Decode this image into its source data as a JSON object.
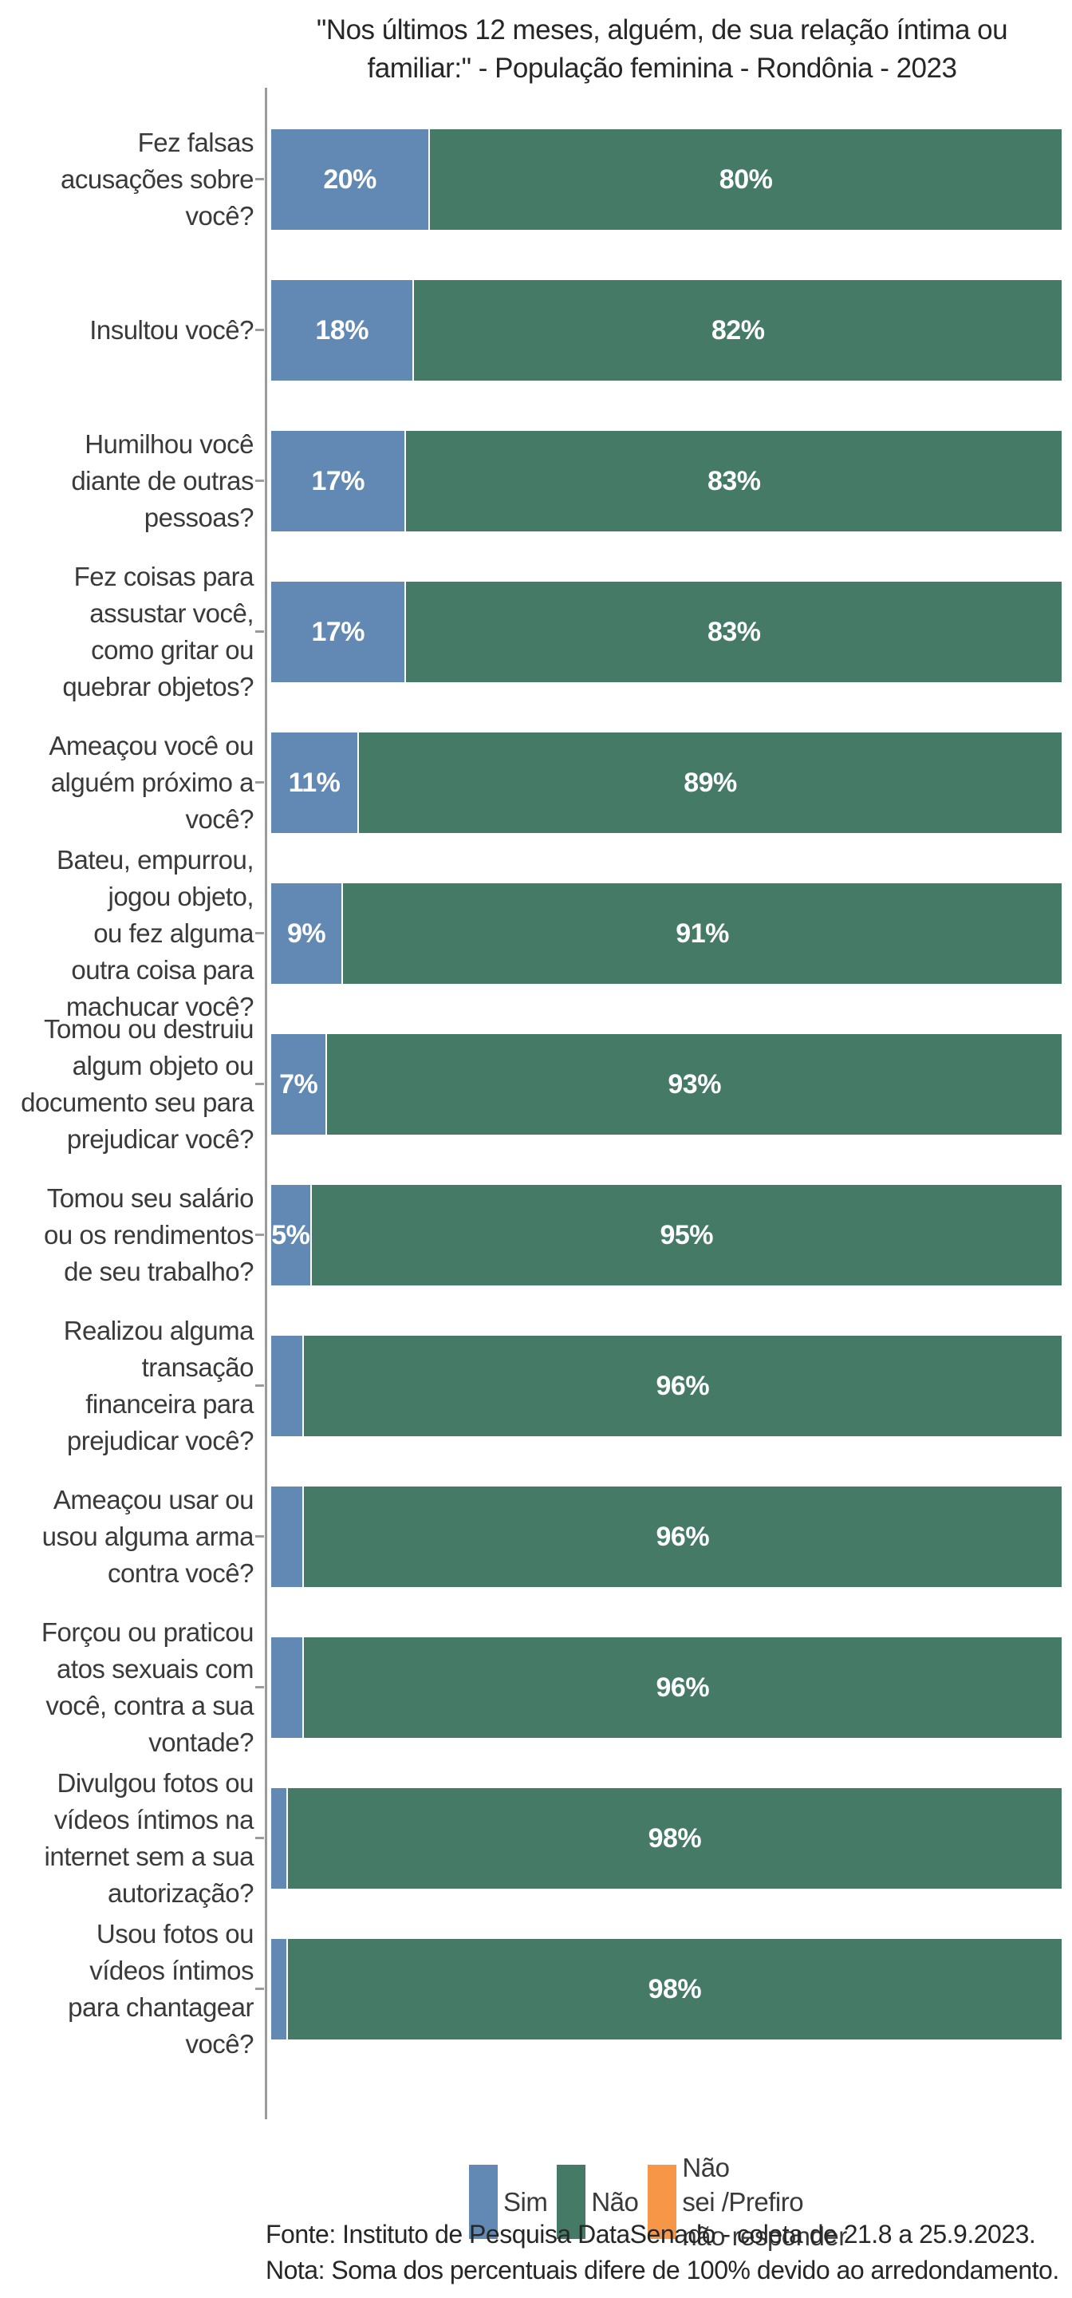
{
  "title": {
    "lines": [
      "\"Nos últimos 12 meses, alguém, de sua relação íntima ou",
      "familiar:\" - População feminina - Rondônia - 2023"
    ]
  },
  "chart_data": {
    "type": "bar",
    "orientation": "horizontal",
    "stacked": true,
    "unit": "%",
    "x_range": [
      0,
      100
    ],
    "grid": false,
    "legend_position": "bottom",
    "categories": [
      "Fez falsas acusações sobre você?",
      "Insultou você?",
      "Humilhou você diante de outras pessoas?",
      "Fez coisas para assustar você, como gritar ou quebrar objetos?",
      "Ameaçou você ou alguém próximo a você?",
      "Bateu, empurrou, jogou objeto, ou fez alguma outra coisa para machucar você?",
      "Tomou ou destruiu algum objeto ou documento seu para prejudicar você?",
      "Tomou seu salário ou os rendimentos de seu trabalho?",
      "Realizou alguma transação financeira para prejudicar você?",
      "Ameaçou usar ou usou alguma arma contra você?",
      "Forçou ou praticou atos sexuais com você, contra a sua vontade?",
      "Divulgou fotos ou vídeos íntimos na internet sem a sua autorização?",
      "Usou fotos ou vídeos íntimos para chantagear você?"
    ],
    "series": [
      {
        "name": "Sim",
        "color": "#6289b4",
        "values": [
          20,
          18,
          17,
          17,
          11,
          9,
          7,
          5,
          4,
          4,
          4,
          2,
          2
        ]
      },
      {
        "name": "Não",
        "color": "#447a66",
        "values": [
          80,
          82,
          83,
          83,
          89,
          91,
          93,
          95,
          96,
          96,
          96,
          98,
          98
        ]
      },
      {
        "name": "Não sei /Prefiro não responder",
        "color": "#f79646",
        "values": [
          0,
          0,
          0,
          0,
          0,
          0,
          0,
          0,
          0,
          0,
          0,
          0,
          0
        ]
      }
    ],
    "rows": [
      {
        "question_lines": [
          "Fez falsas",
          "acusações sobre",
          "você?"
        ],
        "values": {
          "sim": 20,
          "nao": 80
        },
        "labels": {
          "sim": "20%",
          "nao": "80%"
        }
      },
      {
        "question_lines": [
          "Insultou você?"
        ],
        "values": {
          "sim": 18,
          "nao": 82
        },
        "labels": {
          "sim": "18%",
          "nao": "82%"
        }
      },
      {
        "question_lines": [
          "Humilhou você",
          "diante de outras",
          "pessoas?"
        ],
        "values": {
          "sim": 17,
          "nao": 83
        },
        "labels": {
          "sim": "17%",
          "nao": "83%"
        }
      },
      {
        "question_lines": [
          "Fez coisas para",
          "assustar você,",
          "como gritar ou",
          "quebrar objetos?"
        ],
        "values": {
          "sim": 17,
          "nao": 83
        },
        "labels": {
          "sim": "17%",
          "nao": "83%"
        }
      },
      {
        "question_lines": [
          "Ameaçou você ou",
          "alguém próximo a",
          "você?"
        ],
        "values": {
          "sim": 11,
          "nao": 89
        },
        "labels": {
          "sim": "11%",
          "nao": "89%"
        }
      },
      {
        "question_lines": [
          "Bateu, empurrou,",
          "jogou objeto,",
          "ou fez alguma",
          "outra coisa para",
          "machucar você?"
        ],
        "values": {
          "sim": 9,
          "nao": 91
        },
        "labels": {
          "sim": "9%",
          "nao": "91%"
        }
      },
      {
        "question_lines": [
          "Tomou ou destruiu",
          "algum objeto ou",
          "documento seu para",
          "prejudicar você?"
        ],
        "values": {
          "sim": 7,
          "nao": 93
        },
        "labels": {
          "sim": "7%",
          "nao": "93%"
        }
      },
      {
        "question_lines": [
          "Tomou seu salário",
          "ou os rendimentos",
          "de seu trabalho?"
        ],
        "values": {
          "sim": 5,
          "nao": 95
        },
        "labels": {
          "sim": "5%",
          "nao": "95%"
        }
      },
      {
        "question_lines": [
          "Realizou alguma",
          "transação",
          "financeira para",
          "prejudicar você?"
        ],
        "values": {
          "sim": 4,
          "nao": 96
        },
        "labels": {
          "sim": null,
          "nao": "96%"
        }
      },
      {
        "question_lines": [
          "Ameaçou usar ou",
          "usou alguma arma",
          "contra você?"
        ],
        "values": {
          "sim": 4,
          "nao": 96
        },
        "labels": {
          "sim": null,
          "nao": "96%"
        }
      },
      {
        "question_lines": [
          "Forçou ou praticou",
          "atos sexuais com",
          "você, contra a sua",
          "vontade?"
        ],
        "values": {
          "sim": 4,
          "nao": 96
        },
        "labels": {
          "sim": null,
          "nao": "96%"
        }
      },
      {
        "question_lines": [
          "Divulgou fotos ou",
          "vídeos íntimos na",
          "internet sem a sua",
          "autorização?"
        ],
        "values": {
          "sim": 2,
          "nao": 98
        },
        "labels": {
          "sim": null,
          "nao": "98%"
        }
      },
      {
        "question_lines": [
          "Usou fotos ou",
          "vídeos íntimos",
          "para chantagear",
          "você?"
        ],
        "values": {
          "sim": 2,
          "nao": 98
        },
        "labels": {
          "sim": null,
          "nao": "98%"
        }
      }
    ]
  },
  "legend": {
    "items": [
      {
        "name": "Sim",
        "swatch_color": "#6289b4",
        "label_lines": [
          "Sim"
        ]
      },
      {
        "name": "Não",
        "swatch_color": "#447a66",
        "label_lines": [
          "Não"
        ]
      },
      {
        "name": "Não sei /Prefiro não responder",
        "swatch_color": "#f79646",
        "label_lines": [
          "Não",
          "sei /Prefiro",
          "não responder"
        ]
      }
    ]
  },
  "footer": {
    "source": "Fonte: Instituto de Pesquisa DataSenado - coleta de 21.8 a 25.9.2023.",
    "note": "Nota: Soma dos percentuais difere de 100% devido ao arredondamento."
  },
  "colors": {
    "sim": "#6289b4",
    "nao": "#447a66",
    "nao_sei": "#f79646",
    "axis": "#9b9b9b",
    "text": "#3a3a3a",
    "title_text": "#262626",
    "value_label": "#ffffff",
    "background": "#ffffff"
  }
}
